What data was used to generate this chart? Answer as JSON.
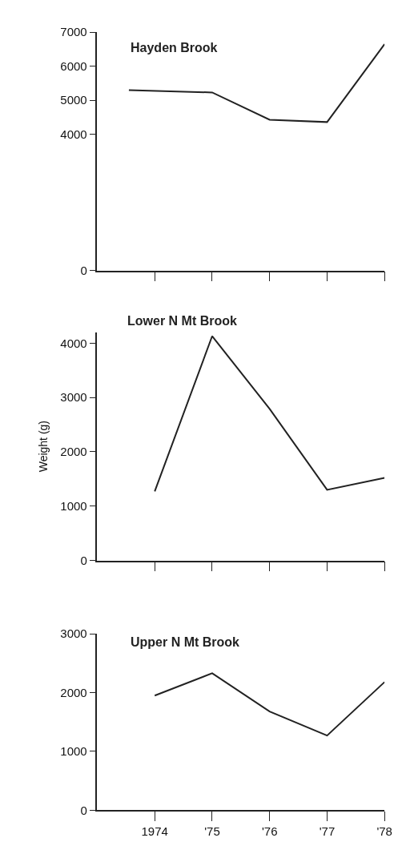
{
  "chart_data": [
    {
      "type": "line",
      "title": "Hayden Brook",
      "x": [
        1973.55,
        1975,
        1976,
        1977,
        1978
      ],
      "series": [
        {
          "color": "#222222",
          "values": [
            5300,
            5230,
            4430,
            4360,
            6650
          ]
        }
      ],
      "xlim": [
        1973,
        1978
      ],
      "xticks": [
        {
          "value": 1974,
          "label": null
        },
        {
          "value": 1975,
          "label": null
        },
        {
          "value": 1976,
          "label": null
        },
        {
          "value": 1977,
          "label": null
        },
        {
          "value": 1978,
          "label": null
        }
      ],
      "ylim": [
        0,
        7000
      ],
      "yticks": [
        0,
        4000,
        5000,
        6000,
        7000
      ],
      "marker": "none",
      "line_style": "solid",
      "tick_labels": "y"
    },
    {
      "type": "line",
      "title": "Lower N Mt Brook",
      "ylabel": "Weight (g)",
      "x": [
        1974,
        1975,
        1976,
        1977,
        1978
      ],
      "series": [
        {
          "color": "#222222",
          "values": [
            1270,
            4130,
            2790,
            1300,
            1520
          ]
        }
      ],
      "xlim": [
        1973,
        1978
      ],
      "xticks": [
        {
          "value": 1974,
          "label": null
        },
        {
          "value": 1975,
          "label": null
        },
        {
          "value": 1976,
          "label": null
        },
        {
          "value": 1977,
          "label": null
        },
        {
          "value": 1978,
          "label": null
        }
      ],
      "ylim": [
        0,
        4200
      ],
      "yticks": [
        0,
        1000,
        2000,
        3000,
        4000
      ],
      "marker": "none",
      "line_style": "solid",
      "tick_labels": "y"
    },
    {
      "type": "line",
      "title": "Upper N Mt Brook",
      "x": [
        1974,
        1975,
        1976,
        1977,
        1978
      ],
      "series": [
        {
          "color": "#222222",
          "values": [
            1950,
            2330,
            1680,
            1270,
            2180
          ]
        }
      ],
      "xlim": [
        1973,
        1978
      ],
      "xticks": [
        {
          "value": 1974,
          "label": "1974"
        },
        {
          "value": 1975,
          "label": "'75"
        },
        {
          "value": 1976,
          "label": "'76"
        },
        {
          "value": 1977,
          "label": "'77"
        },
        {
          "value": 1978,
          "label": "'78"
        }
      ],
      "ylim": [
        0,
        3000
      ],
      "yticks": [
        0,
        1000,
        2000,
        3000
      ],
      "marker": "none",
      "line_style": "solid"
    }
  ]
}
